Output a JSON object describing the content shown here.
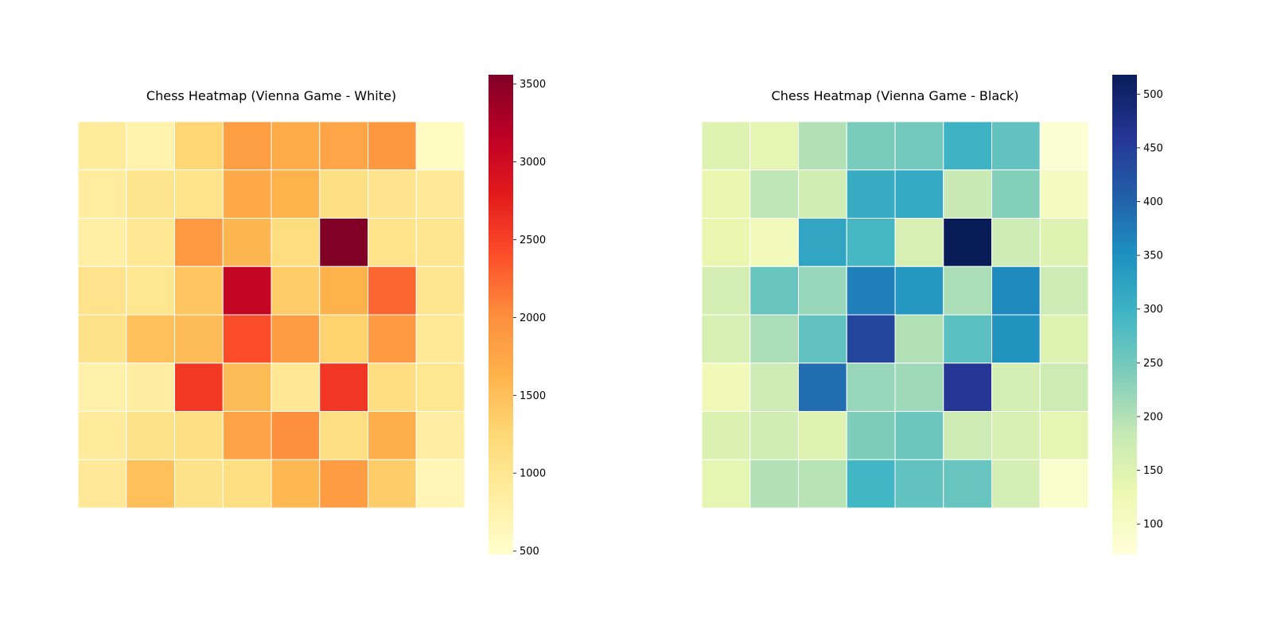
{
  "chart_data": [
    {
      "type": "heatmap",
      "title": "Chess Heatmap (Vienna Game - White)",
      "xlabel": "",
      "ylabel": "",
      "colormap": "YlOrRd",
      "color_stops": [
        "#ffffcc",
        "#ffeda0",
        "#fed976",
        "#feb24c",
        "#fd8d3c",
        "#fc4e2a",
        "#e31a1c",
        "#bd0026",
        "#800026"
      ],
      "vmin": 480,
      "vmax": 3560,
      "colorbar_ticks": [
        500,
        1000,
        1500,
        2000,
        2500,
        3000,
        3500
      ],
      "colorbar_tick_labels": [
        "500",
        "1000",
        "1500",
        "2000",
        "2500",
        "3000",
        "3500"
      ],
      "grid": false,
      "values": [
        [
          900,
          760,
          1280,
          1840,
          1700,
          1760,
          1920,
          560
        ],
        [
          880,
          1030,
          1060,
          1720,
          1640,
          1120,
          1040,
          940
        ],
        [
          820,
          980,
          1900,
          1600,
          1180,
          3560,
          1060,
          1010
        ],
        [
          1050,
          990,
          1450,
          3100,
          1380,
          1640,
          2260,
          1010
        ],
        [
          1070,
          1500,
          1540,
          2420,
          1860,
          1320,
          1880,
          960
        ],
        [
          780,
          860,
          2560,
          1540,
          980,
          2580,
          1160,
          990
        ],
        [
          910,
          1080,
          1120,
          1780,
          2000,
          1130,
          1680,
          840
        ],
        [
          940,
          1500,
          1070,
          1140,
          1580,
          1860,
          1380,
          680
        ]
      ]
    },
    {
      "type": "heatmap",
      "title": "Chess Heatmap (Vienna Game - Black)",
      "xlabel": "",
      "ylabel": "",
      "colormap": "YlGnBu",
      "color_stops": [
        "#ffffd9",
        "#edf8b1",
        "#c7e9b4",
        "#7fcdbb",
        "#41b6c4",
        "#1d91c0",
        "#225ea8",
        "#253494",
        "#081d58"
      ],
      "vmin": 72,
      "vmax": 518,
      "colorbar_ticks": [
        100,
        150,
        200,
        250,
        300,
        350,
        400,
        450,
        500
      ],
      "colorbar_tick_labels": [
        "100",
        "150",
        "200",
        "250",
        "300",
        "350",
        "400",
        "450",
        "500"
      ],
      "grid": false,
      "values": [
        [
          150,
          140,
          200,
          245,
          250,
          300,
          265,
          80
        ],
        [
          130,
          190,
          170,
          310,
          315,
          180,
          235,
          105
        ],
        [
          130,
          115,
          320,
          290,
          160,
          518,
          175,
          150
        ],
        [
          165,
          260,
          220,
          370,
          340,
          205,
          360,
          175
        ],
        [
          160,
          205,
          265,
          440,
          200,
          270,
          345,
          150
        ],
        [
          120,
          175,
          390,
          220,
          215,
          460,
          165,
          175
        ],
        [
          155,
          170,
          150,
          240,
          255,
          175,
          160,
          140
        ],
        [
          140,
          200,
          195,
          295,
          265,
          260,
          165,
          90
        ]
      ]
    }
  ]
}
